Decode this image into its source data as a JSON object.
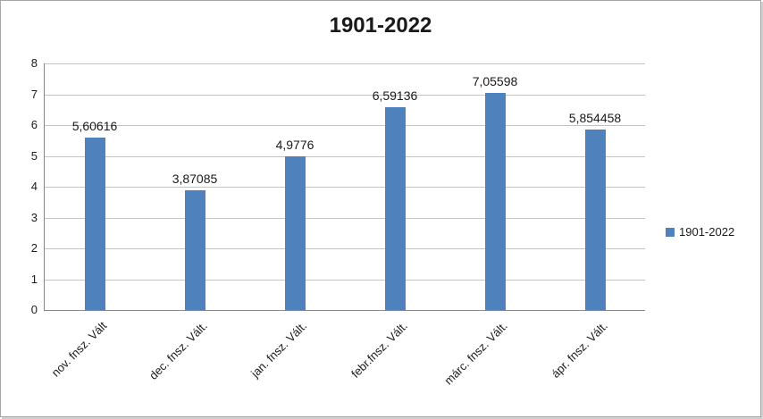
{
  "chart_data": {
    "type": "bar",
    "title": "1901-2022",
    "categories": [
      "nov. fnsz. Vált",
      "dec. fnsz. Vált.",
      "jan. fnsz. Vált.",
      "febr.fnsz. Vált.",
      "márc. fnsz. Vált.",
      "ápr. fnsz. Vált."
    ],
    "values": [
      5.60616,
      3.87085,
      4.9776,
      6.59136,
      7.05598,
      5.854458
    ],
    "value_labels": [
      "5,60616",
      "3,87085",
      "4,9776",
      "6,59136",
      "7,05598",
      "5,854458"
    ],
    "xlabel": "",
    "ylabel": "",
    "ylim": [
      0,
      8
    ],
    "ytick_step": 1,
    "grid": true,
    "bar_color": "#4F81BD",
    "legend_position": "right",
    "legend": [
      {
        "label": "1901-2022",
        "color": "#4F81BD"
      }
    ]
  }
}
